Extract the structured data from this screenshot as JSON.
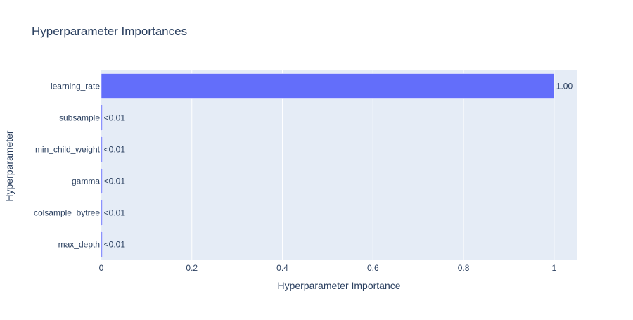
{
  "chart_data": {
    "type": "bar",
    "orientation": "horizontal",
    "title": "Hyperparameter Importances",
    "xlabel": "Hyperparameter Importance",
    "ylabel": "Hyperparameter",
    "categories": [
      "learning_rate",
      "subsample",
      "min_child_weight",
      "gamma",
      "colsample_bytree",
      "max_depth"
    ],
    "values": [
      1.0,
      0.001,
      0.001,
      0.001,
      0.001,
      0.001
    ],
    "value_labels": [
      "1.00",
      "<0.01",
      "<0.01",
      "<0.01",
      "<0.01",
      "<0.01"
    ],
    "xlim": [
      0,
      1.05
    ],
    "xticks": [
      0,
      0.2,
      0.4,
      0.6,
      0.8,
      1
    ],
    "xtick_labels": [
      "0",
      "0.2",
      "0.4",
      "0.6",
      "0.8",
      "1"
    ],
    "grid": true,
    "colors": {
      "bar": "#636efa",
      "plot_bg": "#e5ecf6",
      "grid": "#ffffff",
      "text": "#2a3f5f"
    }
  }
}
